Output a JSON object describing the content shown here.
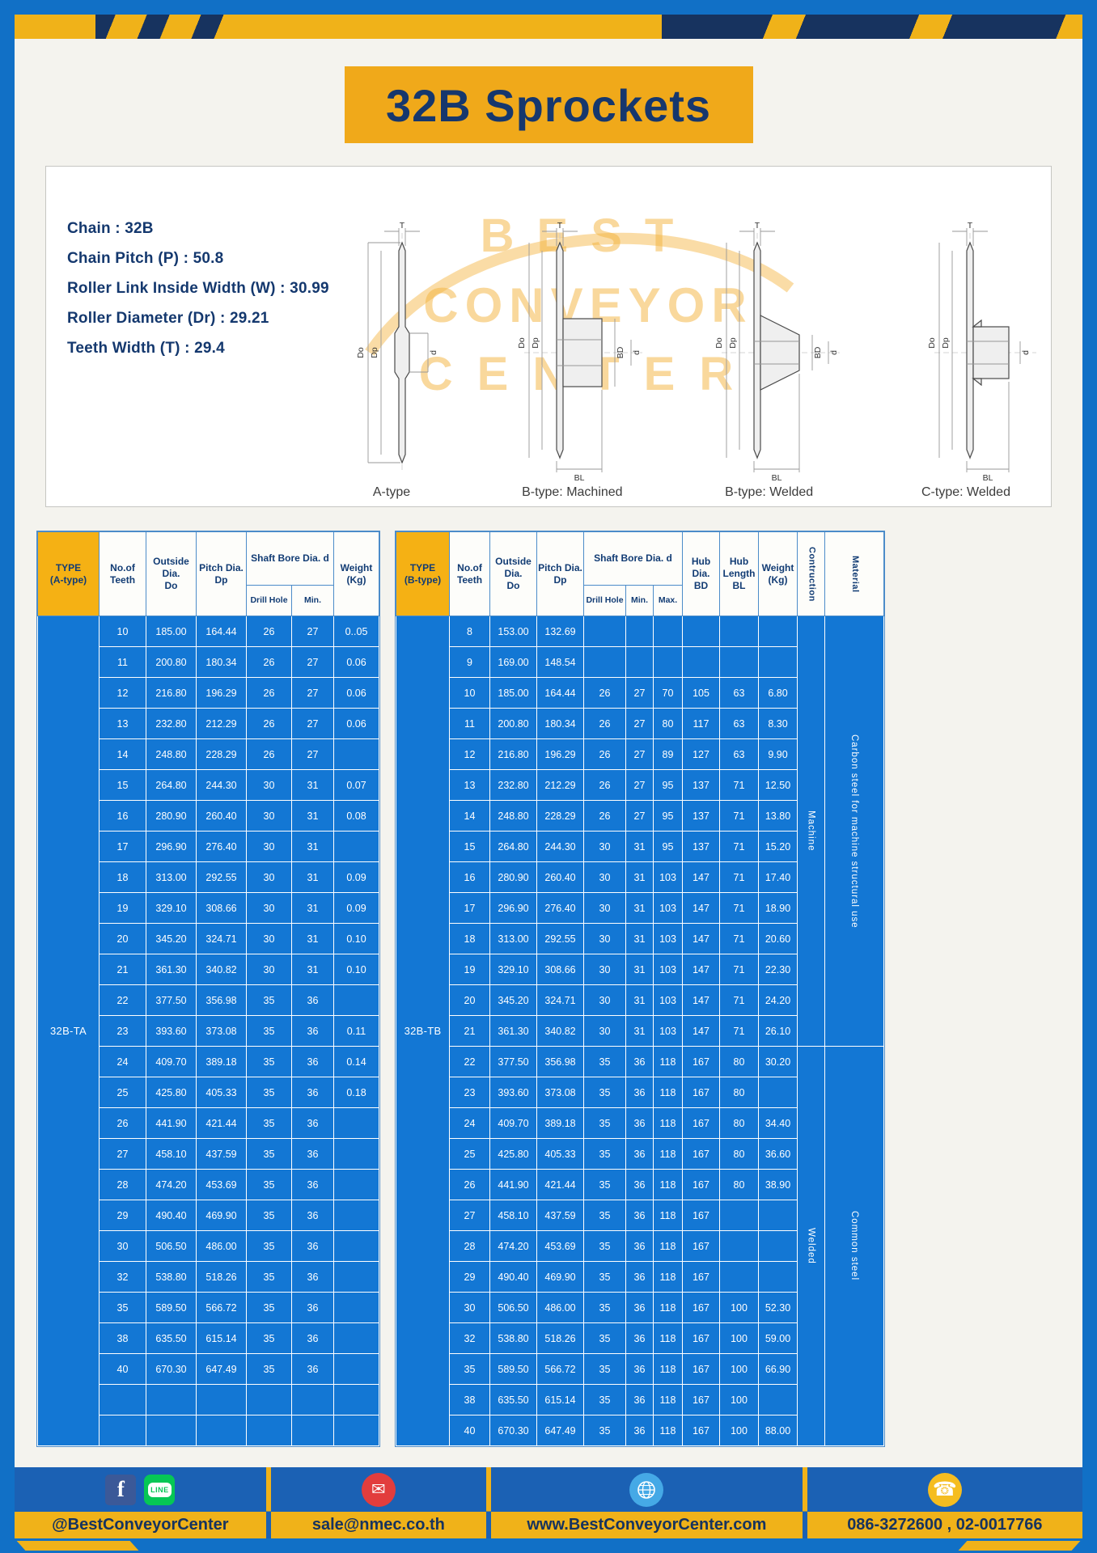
{
  "title": "32B Sprockets",
  "specs": [
    "Chain  :  32B",
    "Chain Pitch (P)  :  50.8",
    "Roller Link Inside Width (W)  :  30.99",
    "Roller Diameter (Dr)  :  29.21",
    "Teeth Width (T)  :  29.4"
  ],
  "watermark": {
    "lines": [
      "BEST",
      "CONVEYOR",
      "CENTER"
    ]
  },
  "diagram": {
    "captions": [
      "A-type",
      "B-type: Machined",
      "B-type: Welded",
      "C-type: Welded"
    ],
    "dims": {
      "t": "T",
      "do": "Do",
      "dp": "Dp",
      "d": "d",
      "bd": "BD",
      "bl": "BL"
    }
  },
  "table_a": {
    "header": {
      "type": "TYPE\n(A-type)",
      "teeth": "No.of\nTeeth",
      "outside": "Outside\nDia.\nDo",
      "pitch": "Pitch Dia.\nDp",
      "bore_group": "Shaft Bore Dia. d",
      "drill": "Drill Hole",
      "min": "Min.",
      "weight": "Weight\n(Kg)"
    },
    "merges": {
      "pre": [
        {
          "row": 0,
          "text": "32B-TA",
          "span": 27,
          "cls": "type-cell",
          "name": "type-label-cell"
        }
      ]
    },
    "rows": [
      [
        "10",
        "185.00",
        "164.44",
        "26",
        "27",
        "0..05"
      ],
      [
        "11",
        "200.80",
        "180.34",
        "26",
        "27",
        "0.06"
      ],
      [
        "12",
        "216.80",
        "196.29",
        "26",
        "27",
        "0.06"
      ],
      [
        "13",
        "232.80",
        "212.29",
        "26",
        "27",
        "0.06"
      ],
      [
        "14",
        "248.80",
        "228.29",
        "26",
        "27",
        ""
      ],
      [
        "15",
        "264.80",
        "244.30",
        "30",
        "31",
        "0.07"
      ],
      [
        "16",
        "280.90",
        "260.40",
        "30",
        "31",
        "0.08"
      ],
      [
        "17",
        "296.90",
        "276.40",
        "30",
        "31",
        ""
      ],
      [
        "18",
        "313.00",
        "292.55",
        "30",
        "31",
        "0.09"
      ],
      [
        "19",
        "329.10",
        "308.66",
        "30",
        "31",
        "0.09"
      ],
      [
        "20",
        "345.20",
        "324.71",
        "30",
        "31",
        "0.10"
      ],
      [
        "21",
        "361.30",
        "340.82",
        "30",
        "31",
        "0.10"
      ],
      [
        "22",
        "377.50",
        "356.98",
        "35",
        "36",
        ""
      ],
      [
        "23",
        "393.60",
        "373.08",
        "35",
        "36",
        "0.11"
      ],
      [
        "24",
        "409.70",
        "389.18",
        "35",
        "36",
        "0.14"
      ],
      [
        "25",
        "425.80",
        "405.33",
        "35",
        "36",
        "0.18"
      ],
      [
        "26",
        "441.90",
        "421.44",
        "35",
        "36",
        ""
      ],
      [
        "27",
        "458.10",
        "437.59",
        "35",
        "36",
        ""
      ],
      [
        "28",
        "474.20",
        "453.69",
        "35",
        "36",
        ""
      ],
      [
        "29",
        "490.40",
        "469.90",
        "35",
        "36",
        ""
      ],
      [
        "30",
        "506.50",
        "486.00",
        "35",
        "36",
        ""
      ],
      [
        "32",
        "538.80",
        "518.26",
        "35",
        "36",
        ""
      ],
      [
        "35",
        "589.50",
        "566.72",
        "35",
        "36",
        ""
      ],
      [
        "38",
        "635.50",
        "615.14",
        "35",
        "36",
        ""
      ],
      [
        "40",
        "670.30",
        "647.49",
        "35",
        "36",
        ""
      ],
      [
        "",
        "",
        "",
        "",
        "",
        ""
      ],
      [
        "",
        "",
        "",
        "",
        "",
        ""
      ]
    ]
  },
  "table_b": {
    "header": {
      "type": "TYPE\n(B-type)",
      "teeth": "No.of\nTeeth",
      "outside": "Outside\nDia.\nDo",
      "pitch": "Pitch Dia.\nDp",
      "bore_group": "Shaft Bore Dia. d",
      "drill": "Drill Hole",
      "min": "Min.",
      "max": "Max.",
      "hub_dia": "Hub Dia.\nBD",
      "hub_len": "Hub\nLength\nBL",
      "weight": "Weight\n(Kg)",
      "construction": "Contruction",
      "material": "Material"
    },
    "merges": {
      "pre": [
        {
          "row": 0,
          "text": "32B-TB",
          "span": 27,
          "cls": "type-cell",
          "name": "type-label-cell"
        }
      ],
      "post": [
        {
          "row": 0,
          "cells": [
            {
              "text": "Machine",
              "span": 14,
              "cls": "vert",
              "name": "construction-cell"
            },
            {
              "text": "Carbon steel for machine structural use",
              "span": 14,
              "cls": "vert",
              "name": "material-cell"
            }
          ]
        },
        {
          "row": 14,
          "cells": [
            {
              "text": "Welded",
              "span": 13,
              "cls": "vert",
              "name": "construction-cell"
            },
            {
              "text": "Common steel",
              "span": 13,
              "cls": "vert",
              "name": "material-cell"
            }
          ]
        }
      ]
    },
    "rows": [
      [
        "8",
        "153.00",
        "132.69",
        "",
        "",
        "",
        "",
        "",
        ""
      ],
      [
        "9",
        "169.00",
        "148.54",
        "",
        "",
        "",
        "",
        "",
        ""
      ],
      [
        "10",
        "185.00",
        "164.44",
        "26",
        "27",
        "70",
        "105",
        "63",
        "6.80"
      ],
      [
        "11",
        "200.80",
        "180.34",
        "26",
        "27",
        "80",
        "117",
        "63",
        "8.30"
      ],
      [
        "12",
        "216.80",
        "196.29",
        "26",
        "27",
        "89",
        "127",
        "63",
        "9.90"
      ],
      [
        "13",
        "232.80",
        "212.29",
        "26",
        "27",
        "95",
        "137",
        "71",
        "12.50"
      ],
      [
        "14",
        "248.80",
        "228.29",
        "26",
        "27",
        "95",
        "137",
        "71",
        "13.80"
      ],
      [
        "15",
        "264.80",
        "244.30",
        "30",
        "31",
        "95",
        "137",
        "71",
        "15.20"
      ],
      [
        "16",
        "280.90",
        "260.40",
        "30",
        "31",
        "103",
        "147",
        "71",
        "17.40"
      ],
      [
        "17",
        "296.90",
        "276.40",
        "30",
        "31",
        "103",
        "147",
        "71",
        "18.90"
      ],
      [
        "18",
        "313.00",
        "292.55",
        "30",
        "31",
        "103",
        "147",
        "71",
        "20.60"
      ],
      [
        "19",
        "329.10",
        "308.66",
        "30",
        "31",
        "103",
        "147",
        "71",
        "22.30"
      ],
      [
        "20",
        "345.20",
        "324.71",
        "30",
        "31",
        "103",
        "147",
        "71",
        "24.20"
      ],
      [
        "21",
        "361.30",
        "340.82",
        "30",
        "31",
        "103",
        "147",
        "71",
        "26.10"
      ],
      [
        "22",
        "377.50",
        "356.98",
        "35",
        "36",
        "118",
        "167",
        "80",
        "30.20"
      ],
      [
        "23",
        "393.60",
        "373.08",
        "35",
        "36",
        "118",
        "167",
        "80",
        ""
      ],
      [
        "24",
        "409.70",
        "389.18",
        "35",
        "36",
        "118",
        "167",
        "80",
        "34.40"
      ],
      [
        "25",
        "425.80",
        "405.33",
        "35",
        "36",
        "118",
        "167",
        "80",
        "36.60"
      ],
      [
        "26",
        "441.90",
        "421.44",
        "35",
        "36",
        "118",
        "167",
        "80",
        "38.90"
      ],
      [
        "27",
        "458.10",
        "437.59",
        "35",
        "36",
        "118",
        "167",
        "",
        ""
      ],
      [
        "28",
        "474.20",
        "453.69",
        "35",
        "36",
        "118",
        "167",
        "",
        ""
      ],
      [
        "29",
        "490.40",
        "469.90",
        "35",
        "36",
        "118",
        "167",
        "",
        ""
      ],
      [
        "30",
        "506.50",
        "486.00",
        "35",
        "36",
        "118",
        "167",
        "100",
        "52.30"
      ],
      [
        "32",
        "538.80",
        "518.26",
        "35",
        "36",
        "118",
        "167",
        "100",
        "59.00"
      ],
      [
        "35",
        "589.50",
        "566.72",
        "35",
        "36",
        "118",
        "167",
        "100",
        "66.90"
      ],
      [
        "38",
        "635.50",
        "615.14",
        "35",
        "36",
        "118",
        "167",
        "100",
        ""
      ],
      [
        "40",
        "670.30",
        "647.49",
        "35",
        "36",
        "118",
        "167",
        "100",
        "88.00"
      ]
    ]
  },
  "footer": {
    "sections": [
      {
        "text": "@BestConveyorCenter"
      },
      {
        "text": "sale@nmec.co.th"
      },
      {
        "text": "www.BestConveyorCenter.com"
      },
      {
        "text": "086-3272600 , 02-0017766"
      }
    ],
    "glyphs": {
      "facebook": "f",
      "line": "LINE",
      "email": "✉",
      "phone": "☎"
    }
  }
}
